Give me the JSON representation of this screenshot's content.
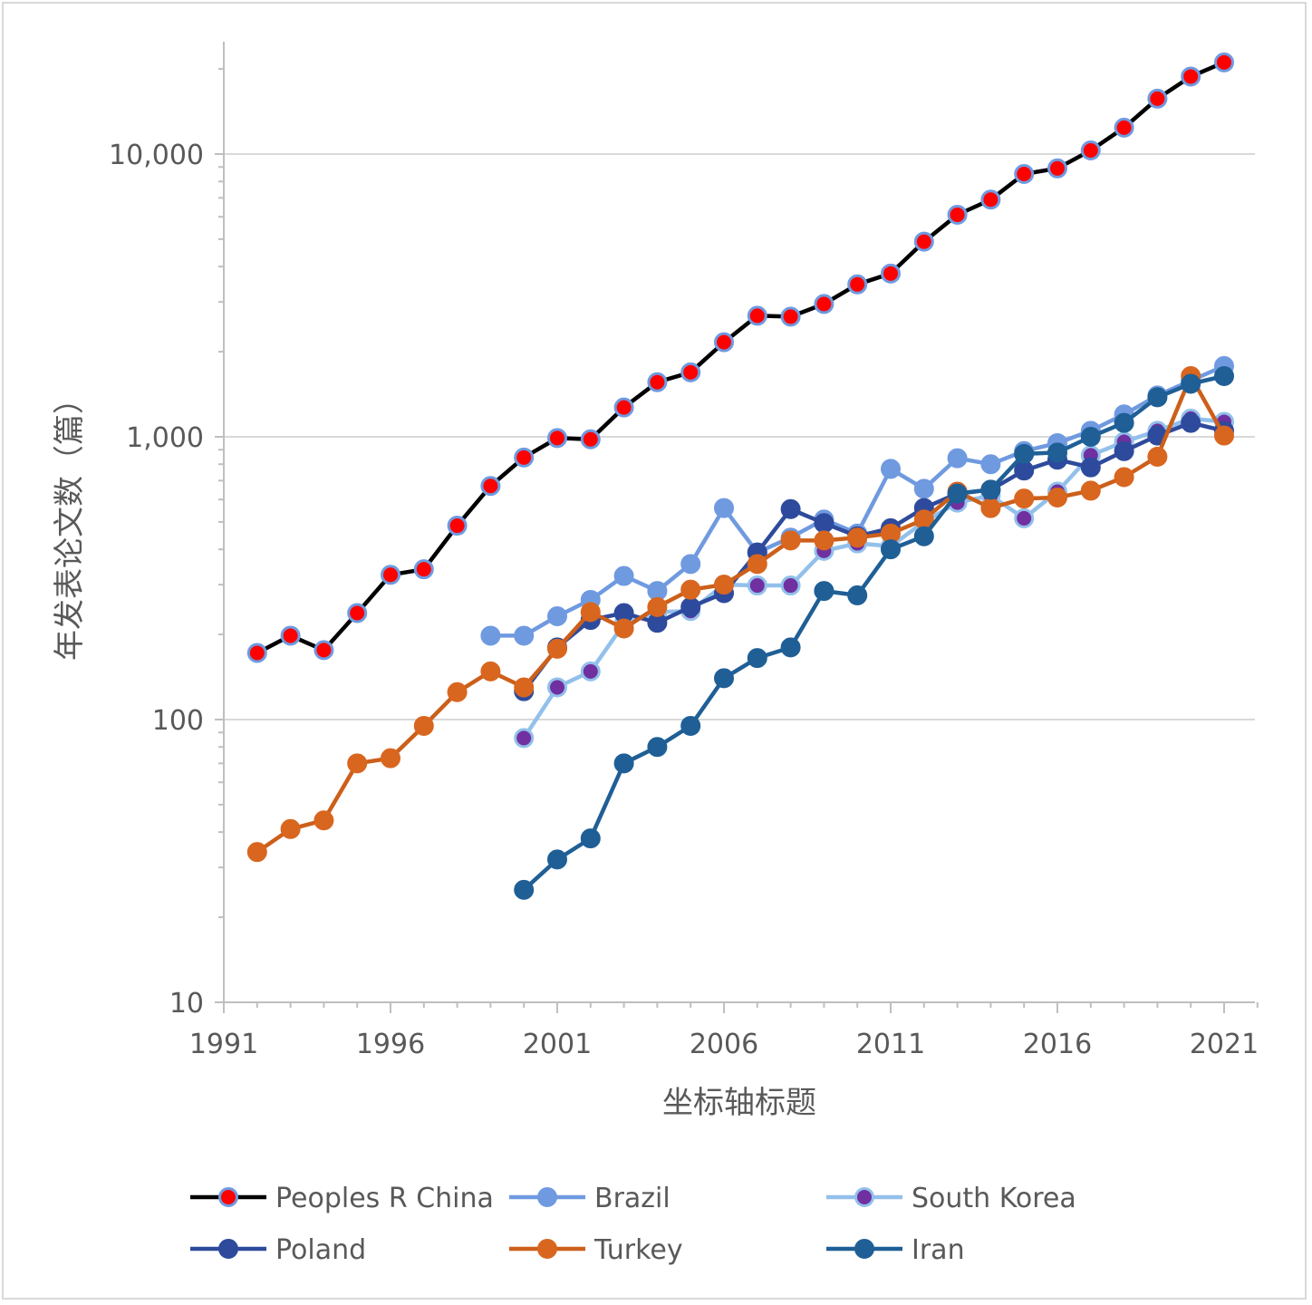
{
  "chart_data": {
    "type": "line",
    "title": "",
    "xlabel": "坐标轴标题",
    "ylabel": "年发表论文数（篇）",
    "y_scale": "log",
    "ylim": [
      10,
      26000
    ],
    "xlim": [
      1991,
      2022
    ],
    "x_ticks": [
      1991,
      1996,
      2001,
      2006,
      2011,
      2016,
      2021
    ],
    "x_tick_labels": [
      "1991",
      "1996",
      "2001",
      "2006",
      "2011",
      "2016",
      "2021"
    ],
    "y_ticks": [
      10,
      100,
      1000,
      10000
    ],
    "y_tick_labels": [
      "10",
      "100",
      "1,000",
      "10,000"
    ],
    "grid": "horizontal",
    "legend_position": "bottom",
    "series": [
      {
        "name": "Peoples R China",
        "line_color": "#000000",
        "marker_fill": "#ff0000",
        "marker_stroke": "#6f9ae0",
        "x": [
          1992,
          1993,
          1994,
          1995,
          1996,
          1997,
          1998,
          1999,
          2000,
          2001,
          2002,
          2003,
          2004,
          2005,
          2006,
          2007,
          2008,
          2009,
          2010,
          2011,
          2012,
          2013,
          2014,
          2015,
          2016,
          2017,
          2018,
          2019,
          2020,
          2021
        ],
        "values": [
          172,
          198,
          176,
          238,
          325,
          340,
          485,
          670,
          845,
          990,
          980,
          1270,
          1560,
          1690,
          2160,
          2680,
          2660,
          2950,
          3460,
          3780,
          4900,
          6100,
          6900,
          8500,
          8900,
          10300,
          12400,
          15700,
          18800,
          21100
        ]
      },
      {
        "name": "Brazil",
        "line_color": "#6f9ae0",
        "marker_fill": "#6f9ae0",
        "marker_stroke": "#6f9ae0",
        "x": [
          1999,
          2000,
          2001,
          2002,
          2003,
          2004,
          2005,
          2006,
          2007,
          2008,
          2009,
          2010,
          2011,
          2012,
          2013,
          2014,
          2015,
          2016,
          2017,
          2018,
          2019,
          2020,
          2021
        ],
        "values": [
          198,
          198,
          232,
          265,
          322,
          285,
          355,
          560,
          390,
          440,
          510,
          455,
          770,
          655,
          840,
          800,
          890,
          950,
          1050,
          1200,
          1400,
          1580,
          1780
        ]
      },
      {
        "name": "South Korea",
        "line_color": "#92c0eb",
        "marker_fill": "#7030a0",
        "marker_stroke": "#92c0eb",
        "x": [
          2000,
          2001,
          2002,
          2003,
          2004,
          2005,
          2006,
          2007,
          2008,
          2009,
          2010,
          2011,
          2012,
          2013,
          2014,
          2015,
          2016,
          2017,
          2018,
          2019,
          2020,
          2021
        ],
        "values": [
          86,
          130,
          148,
          218,
          240,
          242,
          300,
          298,
          298,
          395,
          420,
          410,
          500,
          585,
          620,
          515,
          640,
          860,
          960,
          1050,
          1160,
          1130
        ]
      },
      {
        "name": "Poland",
        "line_color": "#2e4a9c",
        "marker_fill": "#2e4a9c",
        "marker_stroke": "#2e4a9c",
        "x": [
          2000,
          2001,
          2002,
          2003,
          2004,
          2005,
          2006,
          2007,
          2008,
          2009,
          2010,
          2011,
          2012,
          2013,
          2014,
          2015,
          2016,
          2017,
          2018,
          2019,
          2020,
          2021
        ],
        "values": [
          126,
          180,
          225,
          238,
          220,
          250,
          280,
          390,
          555,
          495,
          445,
          475,
          560,
          630,
          650,
          760,
          830,
          780,
          890,
          1010,
          1120,
          1050
        ]
      },
      {
        "name": "Turkey",
        "line_color": "#cc5f1a",
        "marker_fill": "#d9661f",
        "marker_stroke": "#d9661f",
        "x": [
          1992,
          1993,
          1994,
          1995,
          1996,
          1997,
          1998,
          1999,
          2000,
          2001,
          2002,
          2003,
          2004,
          2005,
          2006,
          2007,
          2008,
          2009,
          2010,
          2011,
          2012,
          2013,
          2014,
          2015,
          2016,
          2017,
          2018,
          2019,
          2020,
          2021
        ],
        "values": [
          34,
          41,
          44,
          70,
          73,
          95,
          125,
          148,
          130,
          178,
          240,
          210,
          250,
          288,
          300,
          355,
          430,
          430,
          440,
          455,
          510,
          640,
          560,
          605,
          610,
          645,
          720,
          850,
          1640,
          1010
        ]
      },
      {
        "name": "Iran",
        "line_color": "#1f5f96",
        "marker_fill": "#1f5f96",
        "marker_stroke": "#1f5f96",
        "x": [
          2000,
          2001,
          2002,
          2003,
          2004,
          2005,
          2006,
          2007,
          2008,
          2009,
          2010,
          2011,
          2012,
          2013,
          2014,
          2015,
          2016,
          2017,
          2018,
          2019,
          2020,
          2021
        ],
        "values": [
          25,
          32,
          38,
          70,
          80,
          95,
          140,
          165,
          180,
          285,
          275,
          400,
          445,
          630,
          650,
          870,
          880,
          1000,
          1120,
          1380,
          1540,
          1640
        ]
      }
    ]
  }
}
